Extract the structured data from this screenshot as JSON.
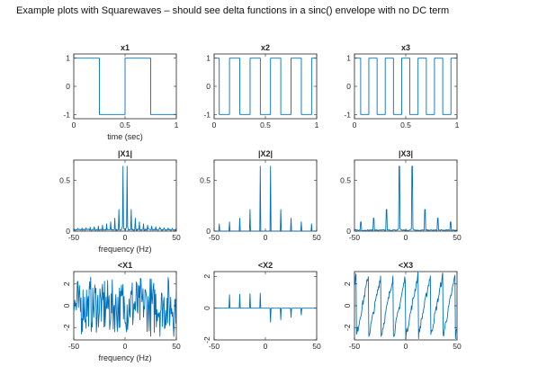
{
  "page": {
    "title": "Example plots with Squarewaves – should see delta functions in a sinc() envelope with no DC term"
  },
  "colors": {
    "series": "#0072bd",
    "axes": "#262626",
    "background": "#ffffff"
  },
  "chart_data": [
    {
      "type": "line",
      "title": "x1",
      "xlabel": "time (sec)",
      "ylabel": "",
      "xlim": [
        0,
        1
      ],
      "ylim": [
        -1.15,
        1.15
      ],
      "xticks": [
        0,
        0.5,
        1
      ],
      "xticklabels": [
        "0",
        "0.5",
        "1"
      ],
      "yticks": [
        -1,
        0,
        1
      ],
      "yticklabels": [
        "-1",
        "0",
        "1"
      ],
      "waveform": "square",
      "period": 0.5,
      "phase": 0,
      "x": [
        0,
        0.25,
        0.25,
        0.5,
        0.5,
        0.75,
        0.75,
        1
      ],
      "y": [
        1,
        1,
        -1,
        -1,
        1,
        1,
        -1,
        -1
      ]
    },
    {
      "type": "line",
      "title": "x2",
      "xlabel": "",
      "ylabel": "",
      "xlim": [
        0,
        1
      ],
      "ylim": [
        -1.15,
        1.15
      ],
      "xticks": [
        0,
        0.5,
        1
      ],
      "xticklabels": [
        "0",
        "0.5",
        "1"
      ],
      "yticks": [
        -1,
        0,
        1
      ],
      "yticklabels": [
        "-1",
        "0",
        "1"
      ],
      "waveform": "square",
      "period": 0.2,
      "phase": 0.05
    },
    {
      "type": "line",
      "title": "x3",
      "xlabel": "",
      "ylabel": "",
      "xlim": [
        0,
        1
      ],
      "ylim": [
        -1.15,
        1.15
      ],
      "xticks": [
        0,
        0.5,
        1
      ],
      "xticklabels": [
        "0",
        "0.5",
        "1"
      ],
      "yticks": [
        -1,
        0,
        1
      ],
      "yticklabels": [
        "-1",
        "0",
        "1"
      ],
      "waveform": "square",
      "period": 0.16,
      "phase": 0.02
    },
    {
      "type": "line",
      "title": "|X1|",
      "xlabel": "frequency (Hz)",
      "ylabel": "",
      "xlim": [
        -50,
        50
      ],
      "ylim": [
        0,
        0.7
      ],
      "xticks": [
        -50,
        0,
        50
      ],
      "xticklabels": [
        "-50",
        "0",
        "50"
      ],
      "yticks": [
        0,
        0.5
      ],
      "yticklabels": [
        "0",
        "0.5"
      ],
      "spectrum": {
        "fundamental_hz": 2,
        "peak": 0.64,
        "noise_floor": 0.015,
        "leakage": 0.08
      }
    },
    {
      "type": "line",
      "title": "|X2|",
      "xlabel": "",
      "ylabel": "",
      "xlim": [
        -50,
        50
      ],
      "ylim": [
        0,
        0.7
      ],
      "xticks": [
        -50,
        0,
        50
      ],
      "xticklabels": [
        "-50",
        "0",
        "50"
      ],
      "yticks": [
        0,
        0.5
      ],
      "yticklabels": [
        "0",
        "0.5"
      ],
      "spectrum": {
        "fundamental_hz": 5,
        "peak": 0.64,
        "noise_floor": 0.0,
        "leakage": 0.0
      }
    },
    {
      "type": "line",
      "title": "|X3|",
      "xlabel": "",
      "ylabel": "",
      "xlim": [
        -50,
        50
      ],
      "ylim": [
        0,
        0.7
      ],
      "xticks": [
        -50,
        0,
        50
      ],
      "xticklabels": [
        "-50",
        "0",
        "50"
      ],
      "yticks": [
        0,
        0.5
      ],
      "yticklabels": [
        "0",
        "0.5"
      ],
      "spectrum": {
        "fundamental_hz": 6.25,
        "peak": 0.64,
        "noise_floor": 0.01,
        "leakage": 0.05
      }
    },
    {
      "type": "line",
      "title": "<X1",
      "xlabel": "frequency (Hz)",
      "ylabel": "",
      "xlim": [
        -50,
        50
      ],
      "ylim": [
        -3.14,
        3.14
      ],
      "xticks": [
        -50,
        0,
        50
      ],
      "xticklabels": [
        "-50",
        "0",
        "50"
      ],
      "yticks": [
        -2,
        0,
        2
      ],
      "yticklabels": [
        "-2",
        "0",
        "2"
      ],
      "phase_style": "noisy"
    },
    {
      "type": "line",
      "title": "<X2",
      "xlabel": "",
      "ylabel": "",
      "xlim": [
        -50,
        50
      ],
      "ylim": [
        -2,
        2.3
      ],
      "xticks": [
        -50,
        0,
        50
      ],
      "xticklabels": [
        "-50",
        "0",
        "50"
      ],
      "yticks": [
        -2,
        0,
        2
      ],
      "yticklabels": [
        "-2",
        "0",
        "2"
      ],
      "phase_style": "spikes",
      "fundamental_hz": 5
    },
    {
      "type": "line",
      "title": "<X3",
      "xlabel": "",
      "ylabel": "",
      "xlim": [
        -50,
        50
      ],
      "ylim": [
        -3.14,
        3.14
      ],
      "xticks": [
        -50,
        0,
        50
      ],
      "xticklabels": [
        "-50",
        "0",
        "50"
      ],
      "yticks": [
        -2,
        0,
        2
      ],
      "yticklabels": [
        "-2",
        "0",
        "2"
      ],
      "phase_style": "sawtooth"
    }
  ]
}
